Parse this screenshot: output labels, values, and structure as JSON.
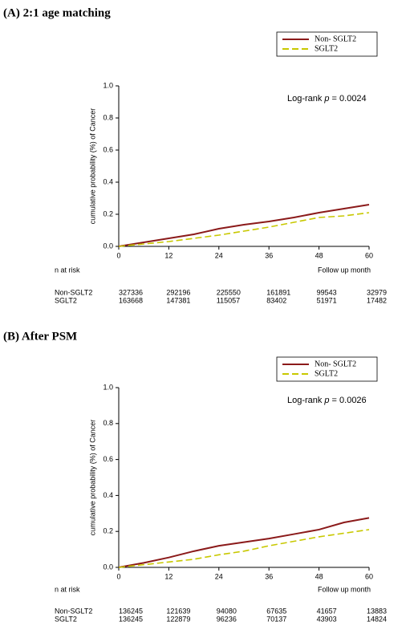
{
  "chart_data": [
    {
      "type": "line",
      "title": "(A) 2:1 age matching",
      "ylabel": "cumulative probability (%) of Cancer",
      "xlabel": "Follow up month",
      "annotation": [
        "Log-rank",
        "p",
        "= 0.0024"
      ],
      "x": [
        0,
        6,
        12,
        18,
        24,
        30,
        36,
        42,
        48,
        54,
        60
      ],
      "series": [
        {
          "name": "Non- SGLT2",
          "color": "#8b1a1a",
          "dash": false,
          "values": [
            0,
            0.025,
            0.05,
            0.075,
            0.11,
            0.135,
            0.155,
            0.18,
            0.21,
            0.235,
            0.26
          ]
        },
        {
          "name": "SGLT2",
          "color": "#c8c800",
          "dash": true,
          "values": [
            0,
            0.015,
            0.03,
            0.05,
            0.07,
            0.095,
            0.12,
            0.15,
            0.18,
            0.19,
            0.21
          ]
        }
      ],
      "xlim": [
        0,
        60
      ],
      "xticks": [
        0,
        12,
        24,
        36,
        48,
        60
      ],
      "ylim": [
        0,
        1
      ],
      "yticks": [
        {
          "value": 0,
          "label": "0.0"
        },
        {
          "value": 0.2,
          "label": "0.2"
        },
        {
          "value": 0.4,
          "label": "0.4"
        },
        {
          "value": 0.6,
          "label": "0.6"
        },
        {
          "value": 0.8,
          "label": "0.8"
        },
        {
          "value": 1,
          "label": "1.0"
        }
      ],
      "risk_table": {
        "label": "n at risk",
        "rows": [
          {
            "name": "Non-SGLT2",
            "values": [
              327336,
              292196,
              225550,
              161891,
              99543,
              32979
            ]
          },
          {
            "name": "SGLT2",
            "values": [
              163668,
              147381,
              115057,
              83402,
              51971,
              17482
            ]
          }
        ]
      }
    },
    {
      "type": "line",
      "title": "(B) After PSM",
      "ylabel": "cumulative probability (%) of Cancer",
      "xlabel": "Follow up month",
      "annotation": [
        "Log-rank",
        "p",
        "= 0.0026"
      ],
      "x": [
        0,
        6,
        12,
        18,
        24,
        30,
        36,
        42,
        48,
        54,
        60
      ],
      "series": [
        {
          "name": "Non- SGLT2",
          "color": "#8b1a1a",
          "dash": false,
          "values": [
            0,
            0.025,
            0.055,
            0.09,
            0.12,
            0.14,
            0.16,
            0.185,
            0.21,
            0.25,
            0.275
          ]
        },
        {
          "name": "SGLT2",
          "color": "#c8c800",
          "dash": true,
          "values": [
            0,
            0.015,
            0.03,
            0.045,
            0.07,
            0.09,
            0.12,
            0.145,
            0.17,
            0.19,
            0.21
          ]
        }
      ],
      "xlim": [
        0,
        60
      ],
      "xticks": [
        0,
        12,
        24,
        36,
        48,
        60
      ],
      "ylim": [
        0,
        1
      ],
      "yticks": [
        {
          "value": 0,
          "label": "0.0"
        },
        {
          "value": 0.2,
          "label": "0.2"
        },
        {
          "value": 0.4,
          "label": "0.4"
        },
        {
          "value": 0.6,
          "label": "0.6"
        },
        {
          "value": 0.8,
          "label": "0.8"
        },
        {
          "value": 1,
          "label": "1.0"
        }
      ],
      "risk_table": {
        "label": "n at risk",
        "rows": [
          {
            "name": "Non-SGLT2",
            "values": [
              136245,
              121639,
              94080,
              67635,
              41657,
              13883
            ]
          },
          {
            "name": "SGLT2",
            "values": [
              136245,
              122879,
              96236,
              70137,
              43903,
              14824
            ]
          }
        ]
      }
    }
  ]
}
